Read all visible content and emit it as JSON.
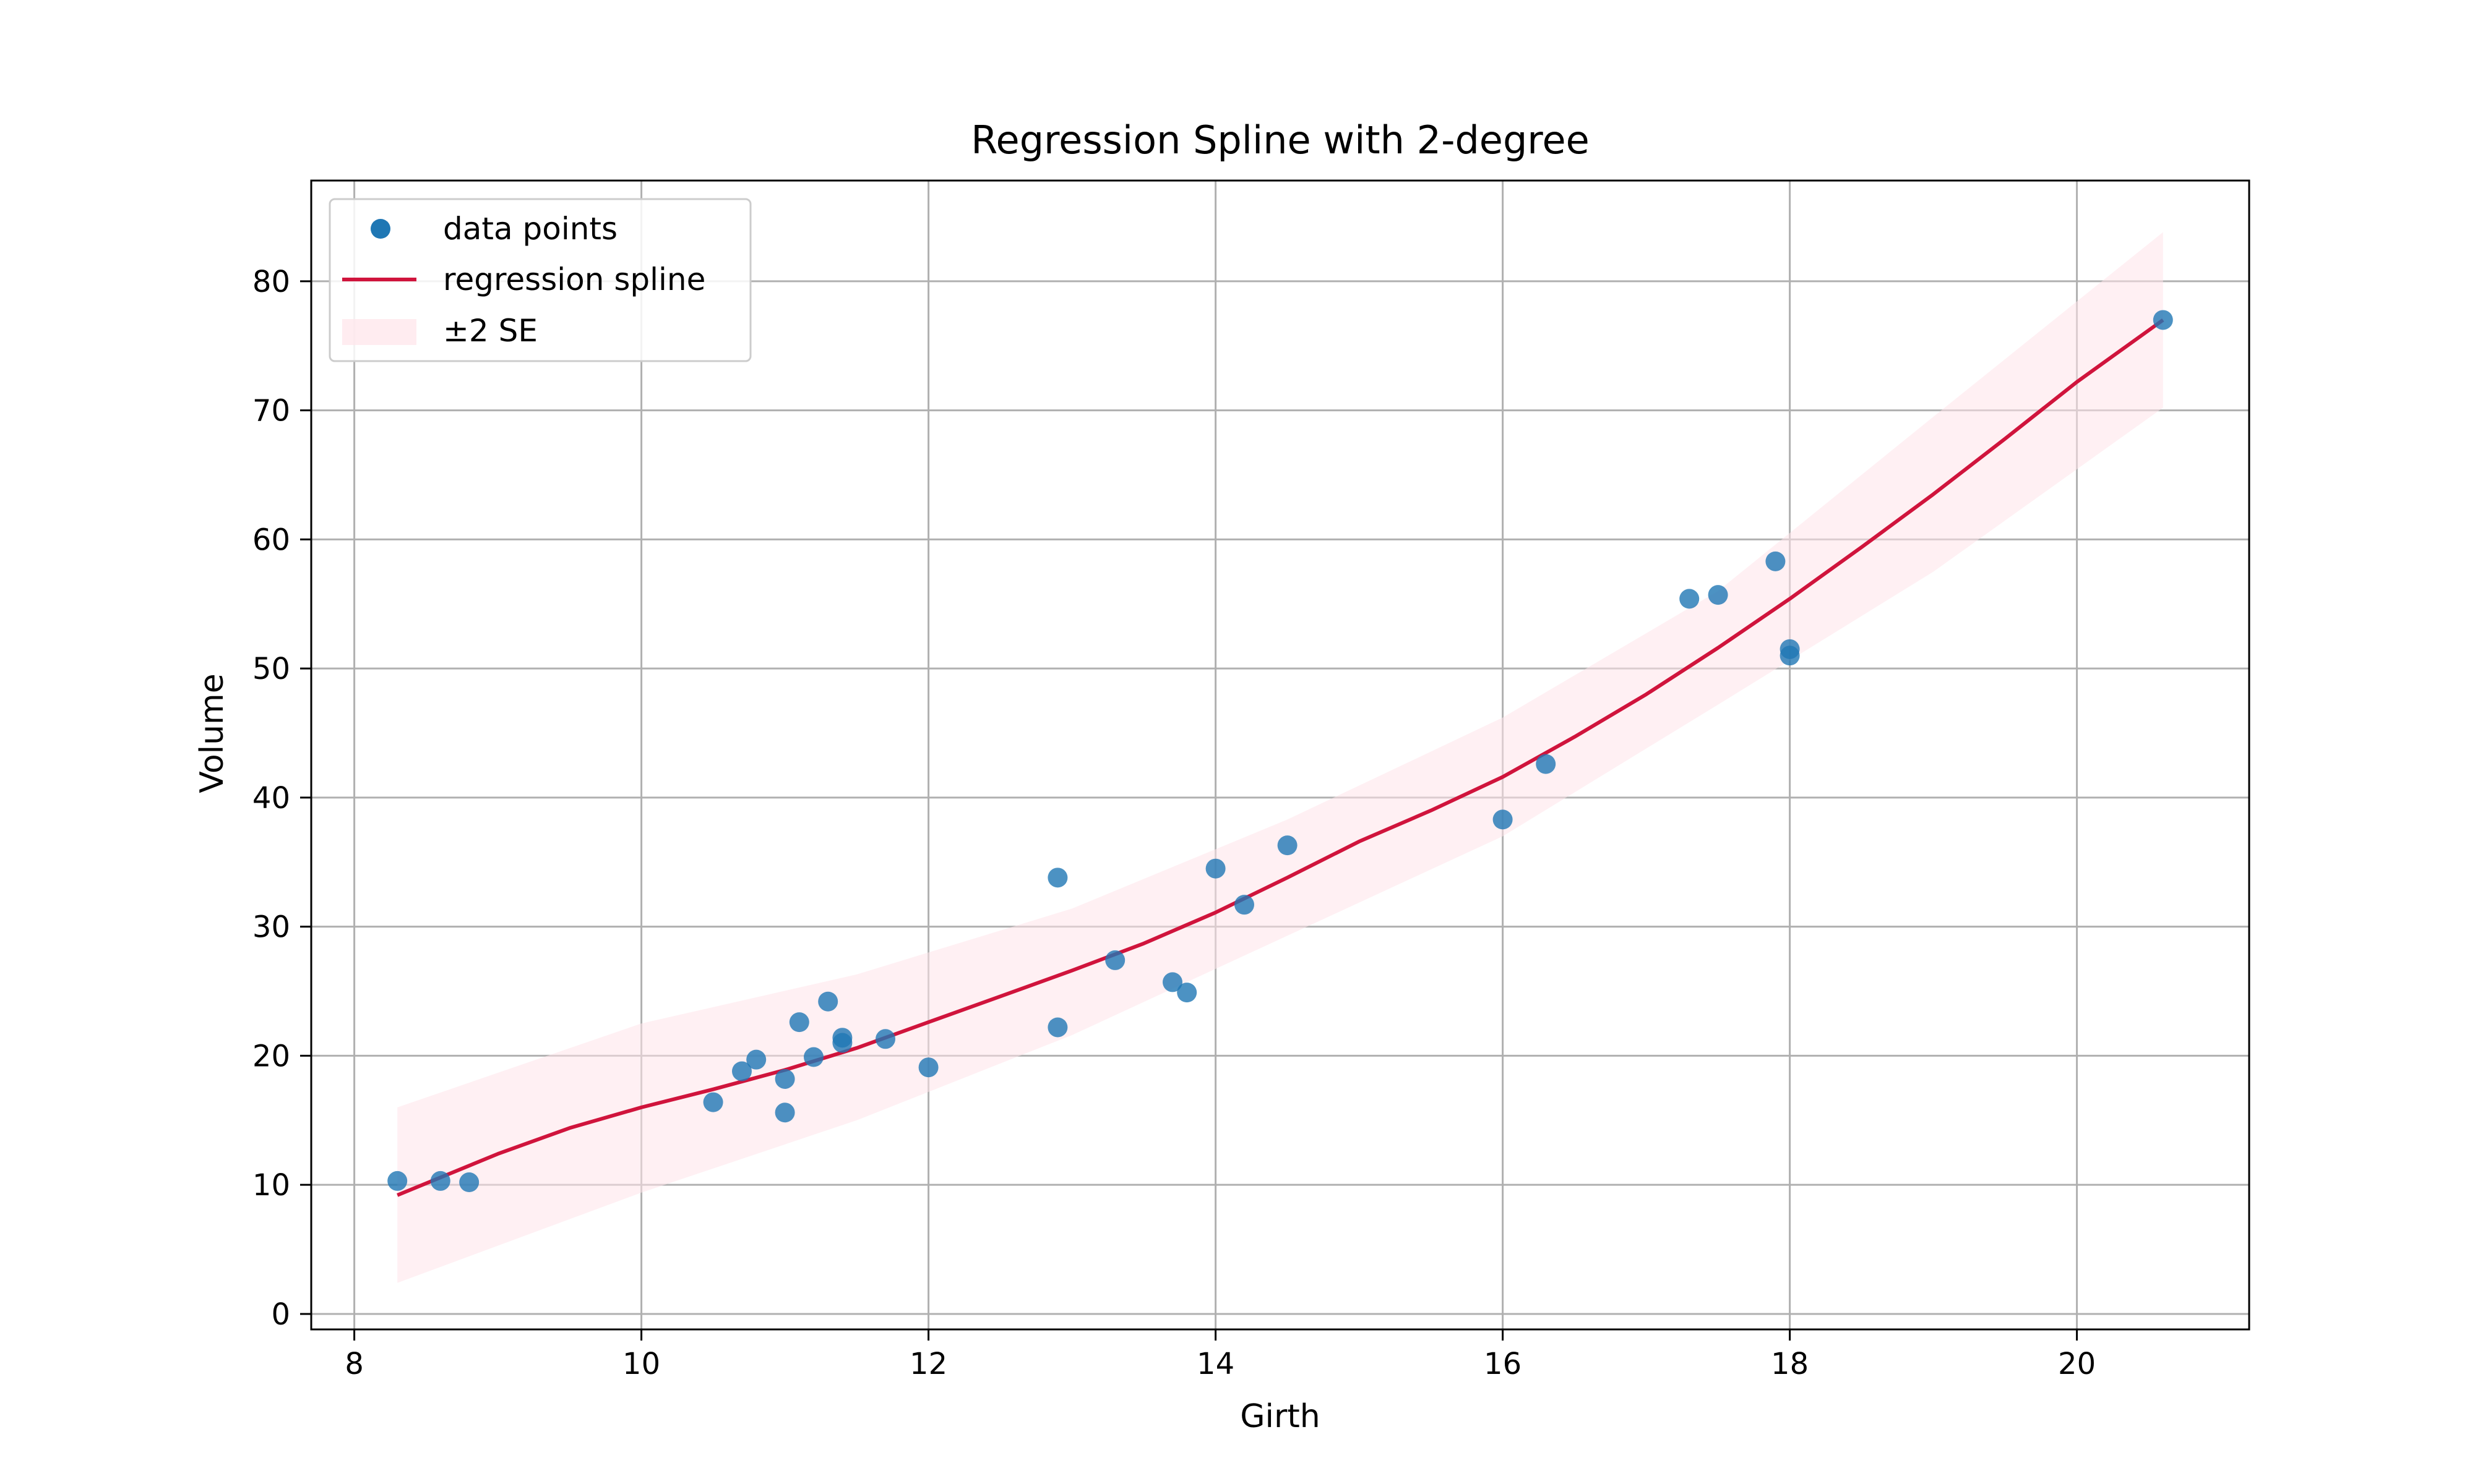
{
  "chart_data": {
    "type": "scatter",
    "title": "Regression Spline with 2-degree",
    "xlabel": "Girth",
    "ylabel": "Volume",
    "xlim": [
      7.7,
      21.2
    ],
    "ylim": [
      -1.2,
      87.8
    ],
    "xticks": [
      8,
      10,
      12,
      14,
      16,
      18,
      20
    ],
    "yticks": [
      0,
      10,
      20,
      30,
      40,
      50,
      60,
      70,
      80
    ],
    "grid": true,
    "legend_position": "top-left",
    "series": [
      {
        "name": "data points",
        "kind": "scatter",
        "color": "#1f77b4",
        "points": [
          [
            8.3,
            10.3
          ],
          [
            8.6,
            10.3
          ],
          [
            8.8,
            10.2
          ],
          [
            10.5,
            16.4
          ],
          [
            10.7,
            18.8
          ],
          [
            10.8,
            19.7
          ],
          [
            11.0,
            15.6
          ],
          [
            11.0,
            18.2
          ],
          [
            11.1,
            22.6
          ],
          [
            11.2,
            19.9
          ],
          [
            11.3,
            24.2
          ],
          [
            11.4,
            21.0
          ],
          [
            11.4,
            21.4
          ],
          [
            11.7,
            21.3
          ],
          [
            12.0,
            19.1
          ],
          [
            12.9,
            22.2
          ],
          [
            12.9,
            33.8
          ],
          [
            13.3,
            27.4
          ],
          [
            13.7,
            25.7
          ],
          [
            13.8,
            24.9
          ],
          [
            14.0,
            34.5
          ],
          [
            14.2,
            31.7
          ],
          [
            14.5,
            36.3
          ],
          [
            16.0,
            38.3
          ],
          [
            16.3,
            42.6
          ],
          [
            17.3,
            55.4
          ],
          [
            17.5,
            55.7
          ],
          [
            17.9,
            58.3
          ],
          [
            18.0,
            51.5
          ],
          [
            18.0,
            51.0
          ],
          [
            20.6,
            77.0
          ]
        ]
      },
      {
        "name": "regression spline",
        "kind": "line",
        "color": "#d0143c",
        "points": [
          [
            8.3,
            9.2
          ],
          [
            9.0,
            12.4
          ],
          [
            9.5,
            14.4
          ],
          [
            10.0,
            16.0
          ],
          [
            10.5,
            17.4
          ],
          [
            11.0,
            18.9
          ],
          [
            11.5,
            20.6
          ],
          [
            12.0,
            22.6
          ],
          [
            12.5,
            24.6
          ],
          [
            13.0,
            26.6
          ],
          [
            13.5,
            28.7
          ],
          [
            14.0,
            31.1
          ],
          [
            14.5,
            33.8
          ],
          [
            15.0,
            36.6
          ],
          [
            15.5,
            39.0
          ],
          [
            16.0,
            41.6
          ],
          [
            16.5,
            44.7
          ],
          [
            17.0,
            48.0
          ],
          [
            17.5,
            51.6
          ],
          [
            18.0,
            55.4
          ],
          [
            18.5,
            59.4
          ],
          [
            19.0,
            63.5
          ],
          [
            19.5,
            67.8
          ],
          [
            20.0,
            72.2
          ],
          [
            20.6,
            77.0
          ]
        ]
      },
      {
        "name": "±2 SE",
        "kind": "band",
        "color": "#ffe4e9",
        "x": [
          8.3,
          10.0,
          11.5,
          13.0,
          14.5,
          16.0,
          17.5,
          19.0,
          20.6
        ],
        "upper": [
          16.0,
          22.5,
          26.3,
          31.4,
          38.3,
          46.2,
          56.0,
          69.5,
          83.8
        ],
        "lower": [
          2.4,
          9.4,
          15.0,
          21.6,
          29.3,
          37.0,
          47.2,
          57.5,
          70.2
        ]
      }
    ]
  }
}
